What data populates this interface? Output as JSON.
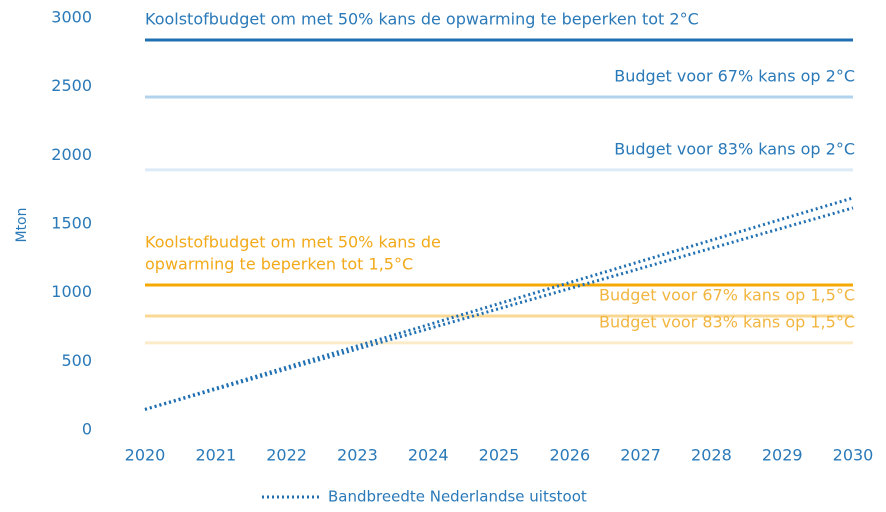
{
  "chart_data": {
    "type": "line",
    "y_label": "Mton",
    "xlim": [
      2020,
      2030
    ],
    "xticks": [
      2020,
      2021,
      2022,
      2023,
      2024,
      2025,
      2026,
      2027,
      2028,
      2029,
      2030
    ],
    "ylim": [
      0,
      3000
    ],
    "yticks": [
      0,
      500,
      1000,
      1500,
      2000,
      2500,
      3000
    ],
    "reference_lines": [
      {
        "label": [
          "Koolstofbudget om met 50% kans de opwarming te beperken tot 2°C"
        ],
        "value": 2840,
        "color": "#1f6fb2",
        "text_color": "#2a79b8",
        "label_position": "left"
      },
      {
        "label": [
          "Budget voor 67% kans op 2°C"
        ],
        "value": 2425,
        "color": "#b3d3ec",
        "text_color": "#2a79b8",
        "label_position": "right"
      },
      {
        "label": [
          "Budget voor 83% kans op 2°C"
        ],
        "value": 1894,
        "color": "#dcebf7",
        "text_color": "#2a79b8",
        "label_position": "right"
      },
      {
        "label": [
          "Koolstofbudget om met 50% kans de",
          "opwarming te beperken tot 1,5°C"
        ],
        "value": 1056,
        "color": "#f4a900",
        "text_color": "#f2aa1a",
        "label_position": "left"
      },
      {
        "label": [
          "Budget voor 67% kans op 1,5°C"
        ],
        "value": 830,
        "color": "#f9d894",
        "text_color": "#f2b640",
        "label_position": "right"
      },
      {
        "label": [
          "Budget voor 83% kans op 1,5°C"
        ],
        "value": 634,
        "color": "#fcebc8",
        "text_color": "#f2b640",
        "label_position": "right"
      }
    ],
    "series": [
      {
        "name": "Bandbreedte Nederlandse uitstoot",
        "color": "#1f6fb2",
        "x": [
          2020,
          2030
        ],
        "values": [
          150,
          1690
        ],
        "lower_values": [
          150,
          1617
        ]
      }
    ]
  }
}
